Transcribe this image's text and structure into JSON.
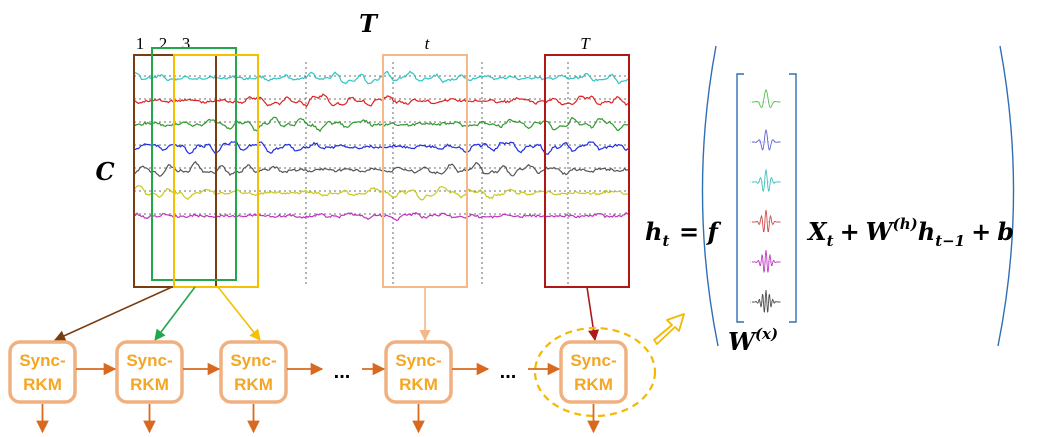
{
  "labels": {
    "time_axis": "T",
    "channel_axis": "C",
    "window_numbers": [
      "1",
      "2",
      "3"
    ],
    "window_t": "t",
    "window_T": "T",
    "ellipsis": "..."
  },
  "blocks": [
    {
      "line1": "Sync-",
      "line2": "RKM"
    },
    {
      "line1": "Sync-",
      "line2": "RKM"
    },
    {
      "line1": "Sync-",
      "line2": "RKM"
    },
    {
      "line1": "Sync-",
      "line2": "RKM"
    },
    {
      "line1": "Sync-",
      "line2": "RKM"
    }
  ],
  "channels": [
    {
      "color": "#2ec4c4"
    },
    {
      "color": "#e02020"
    },
    {
      "color": "#2e9a2e"
    },
    {
      "color": "#1e2ee0"
    },
    {
      "color": "#555555"
    },
    {
      "color": "#c8c820"
    },
    {
      "color": "#c030c0"
    }
  ],
  "window_colors": {
    "w1": "#7a3d10",
    "w2": "#22a84a",
    "w3": "#f5c000",
    "wt": "#f5b88a",
    "wT": "#b01818"
  },
  "block_border": "#f0b080",
  "arrow_color": "#d9691e",
  "equation": {
    "lhs": "h",
    "lhs_sub": "t",
    "equals_f": "= f",
    "x": "X",
    "x_sub": "t",
    "plus1": "+",
    "w": "W",
    "w_sup": "(h)",
    "h": "h",
    "h_sub": "t−1",
    "plus2": "+",
    "b": "b",
    "wx": "W",
    "wx_sup": "(x)"
  },
  "filter_colors": [
    "#50c050",
    "#6060d0",
    "#40c0c0",
    "#d05050",
    "#c040c0",
    "#505050"
  ]
}
